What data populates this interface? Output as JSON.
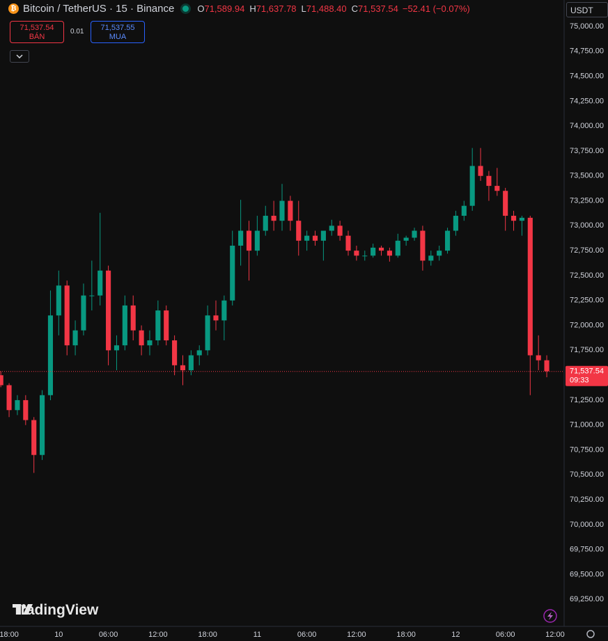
{
  "header": {
    "symbol": "Bitcoin / TetherUS · 15 · Binance",
    "ohlc": [
      {
        "key": "O",
        "value": "71,589.94"
      },
      {
        "key": "H",
        "value": "71,637.78"
      },
      {
        "key": "L",
        "value": "71,488.40"
      },
      {
        "key": "C",
        "value": "71,537.54"
      }
    ],
    "change": "−52.41 (−0.07%)"
  },
  "trade": {
    "sell_price": "71,537.54",
    "sell_label": "BÁN",
    "spread": "0.01",
    "buy_price": "71,537.55",
    "buy_label": "MUA"
  },
  "currency": "USDT",
  "brand": "TradingView",
  "chart_data": {
    "type": "candlestick",
    "up_color": "#089981",
    "down_color": "#f23645",
    "grid": false,
    "ylim": [
      68980,
      75265
    ],
    "xlim": [
      -0.1,
      68.1
    ],
    "yticks": [
      {
        "value": 69250,
        "label": "69,250.00"
      },
      {
        "value": 69500,
        "label": "69,500.00"
      },
      {
        "value": 69750,
        "label": "69,750.00"
      },
      {
        "value": 70000,
        "label": "70,000.00"
      },
      {
        "value": 70250,
        "label": "70,250.00"
      },
      {
        "value": 70500,
        "label": "70,500.00"
      },
      {
        "value": 70750,
        "label": "70,750.00"
      },
      {
        "value": 71000,
        "label": "71,000.00"
      },
      {
        "value": 71250,
        "label": "71,250.00"
      },
      {
        "value": 71500,
        "label": "71,500.00"
      },
      {
        "value": 71750,
        "label": "71,750.00"
      },
      {
        "value": 72000,
        "label": "72,000.00"
      },
      {
        "value": 72250,
        "label": "72,250.00"
      },
      {
        "value": 72500,
        "label": "72,500.00"
      },
      {
        "value": 72750,
        "label": "72,750.00"
      },
      {
        "value": 73000,
        "label": "73,000.00"
      },
      {
        "value": 73250,
        "label": "73,250.00"
      },
      {
        "value": 73500,
        "label": "73,500.00"
      },
      {
        "value": 73750,
        "label": "73,750.00"
      },
      {
        "value": 74000,
        "label": "74,000.00"
      },
      {
        "value": 74250,
        "label": "74,250.00"
      },
      {
        "value": 74500,
        "label": "74,500.00"
      },
      {
        "value": 74750,
        "label": "74,750.00"
      },
      {
        "value": 75000,
        "label": "75,000.00"
      }
    ],
    "xticks": [
      {
        "value": 1,
        "label": "18:00"
      },
      {
        "value": 7,
        "label": "10"
      },
      {
        "value": 13,
        "label": "06:00"
      },
      {
        "value": 19,
        "label": "12:00"
      },
      {
        "value": 25,
        "label": "18:00"
      },
      {
        "value": 31,
        "label": "11"
      },
      {
        "value": 37,
        "label": "06:00"
      },
      {
        "value": 43,
        "label": "12:00"
      },
      {
        "value": 49,
        "label": "18:00"
      },
      {
        "value": 55,
        "label": "12"
      },
      {
        "value": 61,
        "label": "06:00"
      },
      {
        "value": 67,
        "label": "12:00"
      }
    ],
    "open": [
      71500,
      71400,
      71150,
      71250,
      71050,
      70700,
      71300,
      72100,
      72400,
      71800,
      71950,
      72300,
      72300,
      72550,
      71750,
      71800,
      72200,
      71950,
      71800,
      71850,
      72150,
      71850,
      71600,
      71550,
      71700,
      71750,
      72100,
      72050,
      72250,
      72800,
      72950,
      72750,
      72950,
      73100,
      73050,
      73250,
      73050,
      72850,
      72900,
      72850,
      72950,
      73000,
      72900,
      72750,
      72700,
      72700,
      72780,
      72750,
      72700,
      72850,
      72880,
      72950,
      72650,
      72700,
      72750,
      72950,
      73100,
      73200,
      73600,
      73500,
      73400,
      73350,
      73100,
      73050,
      73080,
      71700,
      71650
    ],
    "high": [
      71540,
      71420,
      71300,
      71300,
      71080,
      71350,
      72350,
      72550,
      72450,
      72050,
      72420,
      72650,
      73130,
      72600,
      71900,
      72300,
      72300,
      72000,
      71950,
      72250,
      72200,
      71900,
      71700,
      71750,
      71800,
      72200,
      72250,
      72300,
      72950,
      73260,
      73050,
      73100,
      73200,
      73250,
      73420,
      73300,
      73250,
      72950,
      72950,
      72950,
      73060,
      73050,
      72950,
      72800,
      72750,
      72820,
      72800,
      72780,
      72920,
      72900,
      72980,
      73000,
      72750,
      72800,
      72980,
      73150,
      73250,
      73780,
      73780,
      73550,
      73580,
      73380,
      73150,
      73100,
      73100,
      71900,
      71700
    ],
    "low": [
      71380,
      71080,
      71100,
      71000,
      70520,
      70650,
      71250,
      71900,
      71700,
      71700,
      71900,
      72150,
      72200,
      71600,
      71550,
      71750,
      71850,
      71700,
      71700,
      71800,
      71800,
      71500,
      71400,
      71500,
      71600,
      71700,
      71950,
      71850,
      72200,
      72600,
      72450,
      72700,
      72900,
      72950,
      72950,
      72950,
      72700,
      72750,
      72800,
      72650,
      72900,
      72850,
      72700,
      72650,
      72650,
      72680,
      72700,
      72640,
      72680,
      72800,
      72850,
      72550,
      72600,
      72650,
      72720,
      72900,
      73050,
      73150,
      73450,
      73250,
      73300,
      72950,
      72950,
      72900,
      71300,
      71550,
      71480
    ],
    "close": [
      71400,
      71150,
      71250,
      71050,
      70700,
      71300,
      72100,
      72400,
      71800,
      71950,
      72300,
      72300,
      72550,
      71750,
      71800,
      72200,
      71950,
      71800,
      71850,
      72150,
      71850,
      71600,
      71550,
      71700,
      71750,
      72100,
      72050,
      72250,
      72800,
      72950,
      72750,
      72950,
      73100,
      73050,
      73250,
      73050,
      72850,
      72900,
      72850,
      72950,
      73000,
      72900,
      72750,
      72700,
      72700,
      72780,
      72750,
      72700,
      72850,
      72880,
      72950,
      72650,
      72700,
      72750,
      72950,
      73100,
      73200,
      73600,
      73500,
      73400,
      73350,
      73100,
      73050,
      73080,
      71700,
      71650,
      71540
    ],
    "last_price": {
      "value": 71537.54,
      "label": "71,537.54"
    },
    "countdown": "09:33"
  }
}
